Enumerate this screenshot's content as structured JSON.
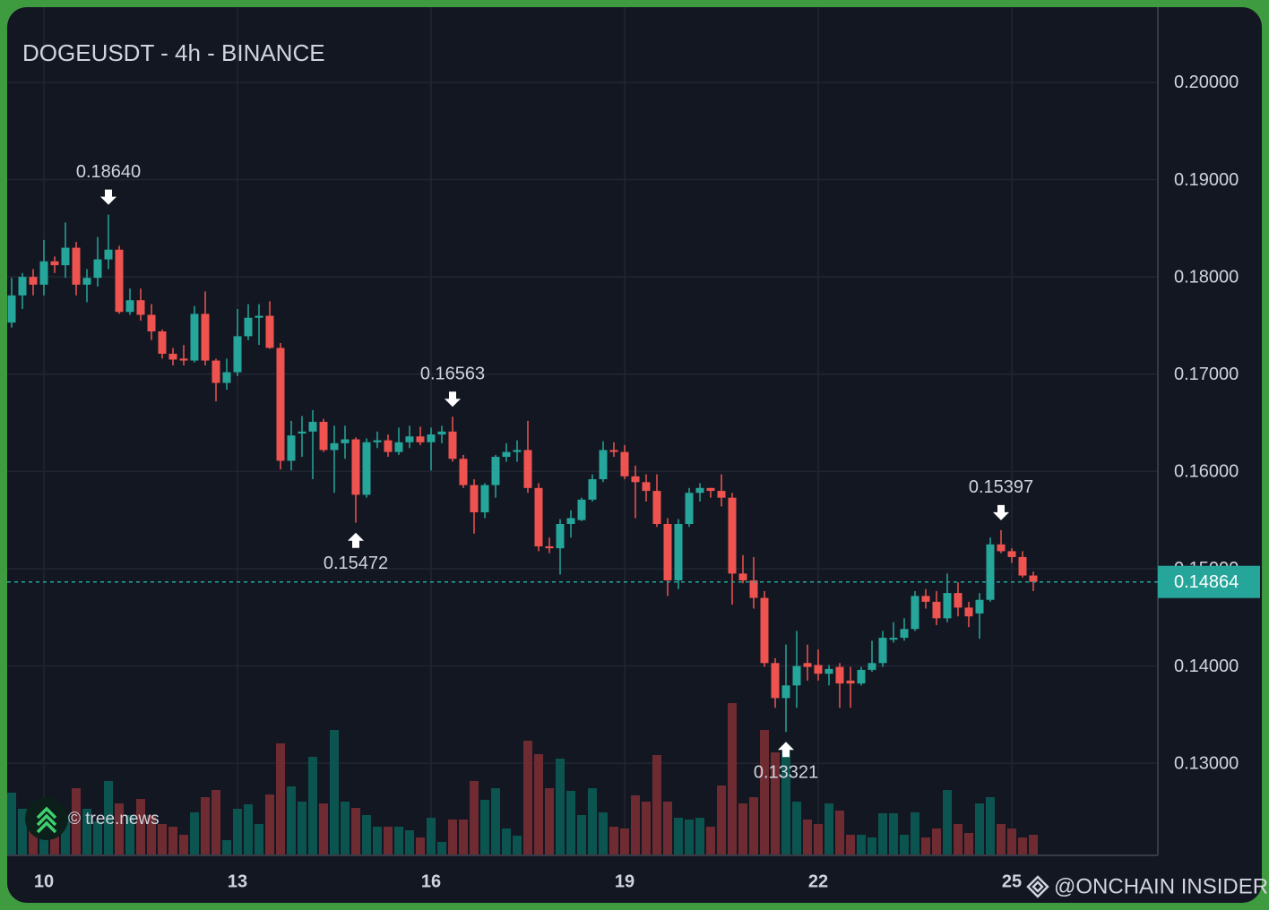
{
  "chart_data": {
    "type": "candlestick",
    "title": "DOGEUSDT - 4h - BINANCE",
    "categories": [
      null,
      null,
      null,
      "10",
      null,
      null,
      null,
      null,
      null,
      null,
      null,
      null,
      null,
      null,
      null,
      null,
      null,
      null,
      null,
      null,
      null,
      "13",
      null,
      null,
      null,
      null,
      null,
      null,
      null,
      null,
      null,
      null,
      null,
      null,
      null,
      null,
      null,
      null,
      null,
      "16",
      null,
      null,
      null,
      null,
      null,
      null,
      null,
      null,
      null,
      null,
      null,
      null,
      null,
      null,
      null,
      null,
      null,
      "19",
      null,
      null,
      null,
      null,
      null,
      null,
      null,
      null,
      null,
      null,
      null,
      null,
      null,
      null,
      null,
      null,
      null,
      "22",
      null,
      null,
      null,
      null,
      null,
      null,
      null,
      null,
      null,
      null,
      null,
      null,
      null,
      null,
      null,
      null,
      null,
      "25",
      null,
      null
    ],
    "open": [
      0.1753,
      0.1781,
      0.18,
      0.1792,
      0.1816,
      0.1812,
      0.183,
      0.1792,
      0.1799,
      0.1818,
      0.1828,
      0.1764,
      0.1776,
      0.1761,
      0.1744,
      0.1721,
      0.1716,
      0.1714,
      0.1762,
      0.1714,
      0.1691,
      0.1702,
      0.1739,
      0.1758,
      0.176,
      0.1727,
      0.1611,
      0.1639,
      0.1641,
      0.1651,
      0.1622,
      0.1629,
      0.1633,
      0.1576,
      0.163,
      0.1632,
      0.162,
      0.163,
      0.1636,
      0.163,
      0.1638,
      0.1641,
      0.1613,
      0.1586,
      0.1558,
      0.1586,
      0.1615,
      0.162,
      0.1622,
      0.1583,
      0.1523,
      0.1521,
      0.1546,
      0.155,
      0.1571,
      0.1592,
      0.1622,
      0.162,
      0.1595,
      0.1589,
      0.158,
      0.1546,
      0.1488,
      0.1546,
      0.1578,
      0.1583,
      0.158,
      0.1573,
      0.1495,
      0.1488,
      0.147,
      0.1403,
      0.1367,
      0.138,
      0.1403,
      0.1401,
      0.1392,
      0.1399,
      0.1385,
      0.1382,
      0.1396,
      0.1403,
      0.1427,
      0.1429,
      0.1438,
      0.1472,
      0.1466,
      0.1449,
      0.1475,
      0.146,
      0.1454,
      0.1468,
      0.1525,
      0.1518,
      0.1512,
      0.1493
    ],
    "high": [
      0.1799,
      0.1804,
      0.1808,
      0.1838,
      0.1821,
      0.1856,
      0.1836,
      0.1808,
      0.1841,
      0.1864,
      0.1832,
      0.1788,
      0.1788,
      0.1772,
      0.1746,
      0.1727,
      0.173,
      0.177,
      0.1785,
      0.1716,
      0.1716,
      0.1767,
      0.1772,
      0.1772,
      0.1775,
      0.1732,
      0.1652,
      0.1657,
      0.1663,
      0.1654,
      0.1647,
      0.1647,
      0.1635,
      0.1634,
      0.1641,
      0.1638,
      0.1645,
      0.1647,
      0.1646,
      0.1645,
      0.1647,
      0.16563,
      0.1617,
      0.1592,
      0.1588,
      0.1617,
      0.1629,
      0.1632,
      0.1652,
      0.1588,
      0.1532,
      0.1551,
      0.156,
      0.1573,
      0.1597,
      0.1631,
      0.163,
      0.1627,
      0.1606,
      0.1597,
      0.1597,
      0.1552,
      0.1551,
      0.1583,
      0.1588,
      0.1583,
      0.1597,
      0.1578,
      0.1514,
      0.1512,
      0.1477,
      0.1408,
      0.1422,
      0.1436,
      0.1422,
      0.1417,
      0.1401,
      0.1403,
      0.1399,
      0.1399,
      0.1426,
      0.1436,
      0.1445,
      0.1449,
      0.1477,
      0.1479,
      0.1477,
      0.1495,
      0.1486,
      0.1466,
      0.1475,
      0.1532,
      0.15397,
      0.1521,
      0.1518,
      0.1497
    ],
    "low": [
      0.1748,
      0.1767,
      0.1781,
      0.1781,
      0.1804,
      0.1799,
      0.1781,
      0.1774,
      0.179,
      0.1808,
      0.1762,
      0.1761,
      0.1755,
      0.1735,
      0.1716,
      0.1709,
      0.1709,
      0.1712,
      0.1709,
      0.1672,
      0.1684,
      0.1698,
      0.1735,
      0.173,
      0.1726,
      0.1602,
      0.1601,
      0.1615,
      0.1592,
      0.162,
      0.1578,
      0.1613,
      0.15472,
      0.1573,
      0.1624,
      0.1615,
      0.1617,
      0.1624,
      0.1627,
      0.1601,
      0.1629,
      0.161,
      0.1583,
      0.1536,
      0.1552,
      0.1573,
      0.161,
      0.161,
      0.1578,
      0.1518,
      0.1516,
      0.1494,
      0.1532,
      0.1549,
      0.1569,
      0.1589,
      0.1615,
      0.1592,
      0.1552,
      0.1569,
      0.1543,
      0.1472,
      0.1479,
      0.1543,
      0.1569,
      0.1573,
      0.1564,
      0.1463,
      0.1485,
      0.1459,
      0.1399,
      0.1357,
      0.13321,
      0.1357,
      0.1385,
      0.1385,
      0.138,
      0.1357,
      0.1357,
      0.138,
      0.1394,
      0.1399,
      0.1424,
      0.1426,
      0.1436,
      0.1459,
      0.1442,
      0.1445,
      0.1451,
      0.144,
      0.1428,
      0.1466,
      0.1516,
      0.1506,
      0.1491,
      0.1477
    ],
    "close": [
      0.1781,
      0.18,
      0.1792,
      0.1816,
      0.1812,
      0.183,
      0.1792,
      0.1799,
      0.1818,
      0.1828,
      0.1764,
      0.1776,
      0.1761,
      0.1744,
      0.1721,
      0.1715,
      0.1714,
      0.1762,
      0.1714,
      0.1691,
      0.1702,
      0.1739,
      0.1758,
      0.176,
      0.1727,
      0.1611,
      0.1637,
      0.1641,
      0.1651,
      0.1622,
      0.1629,
      0.1633,
      0.1576,
      0.163,
      0.1632,
      0.162,
      0.163,
      0.1636,
      0.163,
      0.1638,
      0.1641,
      0.1613,
      0.1586,
      0.1558,
      0.1586,
      0.1615,
      0.162,
      0.1622,
      0.1583,
      0.1523,
      0.1521,
      0.1546,
      0.1552,
      0.1571,
      0.1592,
      0.1622,
      0.162,
      0.1595,
      0.1589,
      0.158,
      0.1546,
      0.1488,
      0.1546,
      0.1578,
      0.1583,
      0.158,
      0.1573,
      0.1495,
      0.1488,
      0.147,
      0.1403,
      0.1367,
      0.138,
      0.14,
      0.1399,
      0.1392,
      0.1397,
      0.1382,
      0.1382,
      0.1396,
      0.1403,
      0.1429,
      0.1429,
      0.1438,
      0.1472,
      0.1466,
      0.1449,
      0.1475,
      0.146,
      0.1451,
      0.1468,
      0.1525,
      0.1518,
      0.1512,
      0.1493,
      0.14864
    ],
    "volume": [
      70,
      52,
      35,
      57,
      60,
      45,
      75,
      52,
      38,
      83,
      58,
      45,
      63,
      45,
      35,
      32,
      23,
      48,
      65,
      73,
      17,
      52,
      57,
      35,
      68,
      125,
      77,
      60,
      110,
      58,
      140,
      60,
      53,
      45,
      32,
      32,
      32,
      28,
      20,
      42,
      15,
      40,
      40,
      83,
      62,
      75,
      30,
      22,
      128,
      113,
      75,
      108,
      72,
      45,
      75,
      48,
      32,
      30,
      67,
      60,
      112,
      60,
      42,
      40,
      42,
      32,
      78,
      170,
      58,
      65,
      140,
      115,
      120,
      60,
      40,
      35,
      58,
      50,
      23,
      23,
      20,
      47,
      47,
      23,
      48,
      20,
      30,
      73,
      35,
      25,
      58,
      65,
      35,
      30,
      20,
      23
    ],
    "up_color": "#26a69a",
    "down_color": "#ef5350",
    "volume_up_color": "#0c5450",
    "volume_down_color": "#6e2b31",
    "ylim": [
      0.12053,
      0.20773
    ],
    "yticks": [
      {
        "value": 0.13,
        "label": "0.13000"
      },
      {
        "value": 0.14,
        "label": "0.14000"
      },
      {
        "value": 0.15,
        "label": "0.15000"
      },
      {
        "value": 0.16,
        "label": "0.16000"
      },
      {
        "value": 0.17,
        "label": "0.17000"
      },
      {
        "value": 0.18,
        "label": "0.18000"
      },
      {
        "value": 0.19,
        "label": "0.19000"
      },
      {
        "value": 0.2,
        "label": "0.20000"
      }
    ],
    "grid": true,
    "annotations": [
      {
        "value": 0.1864,
        "label": "0.18640",
        "candle": 9,
        "position": "above"
      },
      {
        "value": 0.15472,
        "label": "0.15472",
        "candle": 32,
        "position": "below"
      },
      {
        "value": 0.16563,
        "label": "0.16563",
        "candle": 41,
        "position": "above"
      },
      {
        "value": 0.13321,
        "label": "0.13321",
        "candle": 72,
        "position": "below"
      },
      {
        "value": 0.15397,
        "label": "0.15397",
        "candle": 92,
        "position": "above"
      }
    ],
    "watermarks": [
      "© tree.news",
      "@ONCHAIN INSIDER"
    ]
  }
}
